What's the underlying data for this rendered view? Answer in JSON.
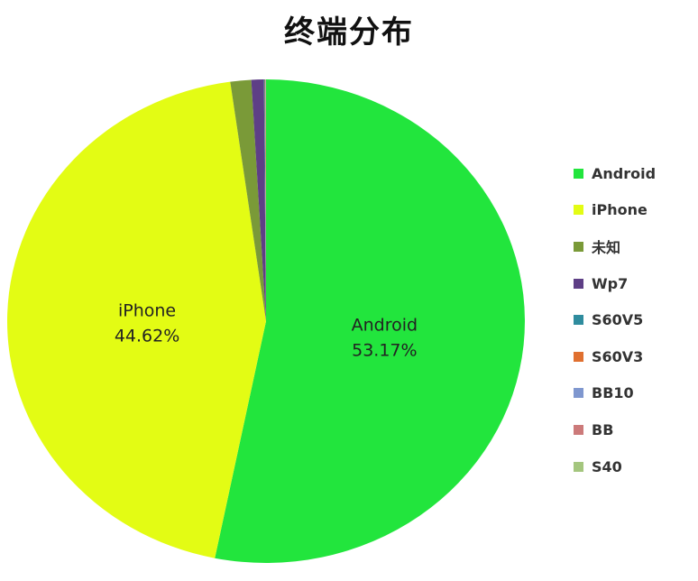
{
  "chart_data": {
    "type": "pie",
    "title": "终端分布",
    "legend_position": "right",
    "start": "top, clockwise",
    "slices": [
      {
        "name": "Android",
        "value": 53.17,
        "label": "Android\n53.17%",
        "color": "#22e53d"
      },
      {
        "name": "iPhone",
        "value": 44.62,
        "label": "iPhone\n44.62%",
        "color": "#e3fc14"
      },
      {
        "name": "未知",
        "value": 1.3,
        "color": "#7a9a38"
      },
      {
        "name": "Wp7",
        "value": 0.78,
        "color": "#5e3f86"
      },
      {
        "name": "S60V5",
        "value": 0.05,
        "color": "#2f8c9e"
      },
      {
        "name": "S60V3",
        "value": 0.04,
        "color": "#e07030"
      },
      {
        "name": "BB10",
        "value": 0.02,
        "color": "#7f97cf"
      },
      {
        "name": "BB",
        "value": 0.01,
        "color": "#cc7a7a"
      },
      {
        "name": "S40",
        "value": 0.01,
        "color": "#a4c67e"
      }
    ]
  }
}
